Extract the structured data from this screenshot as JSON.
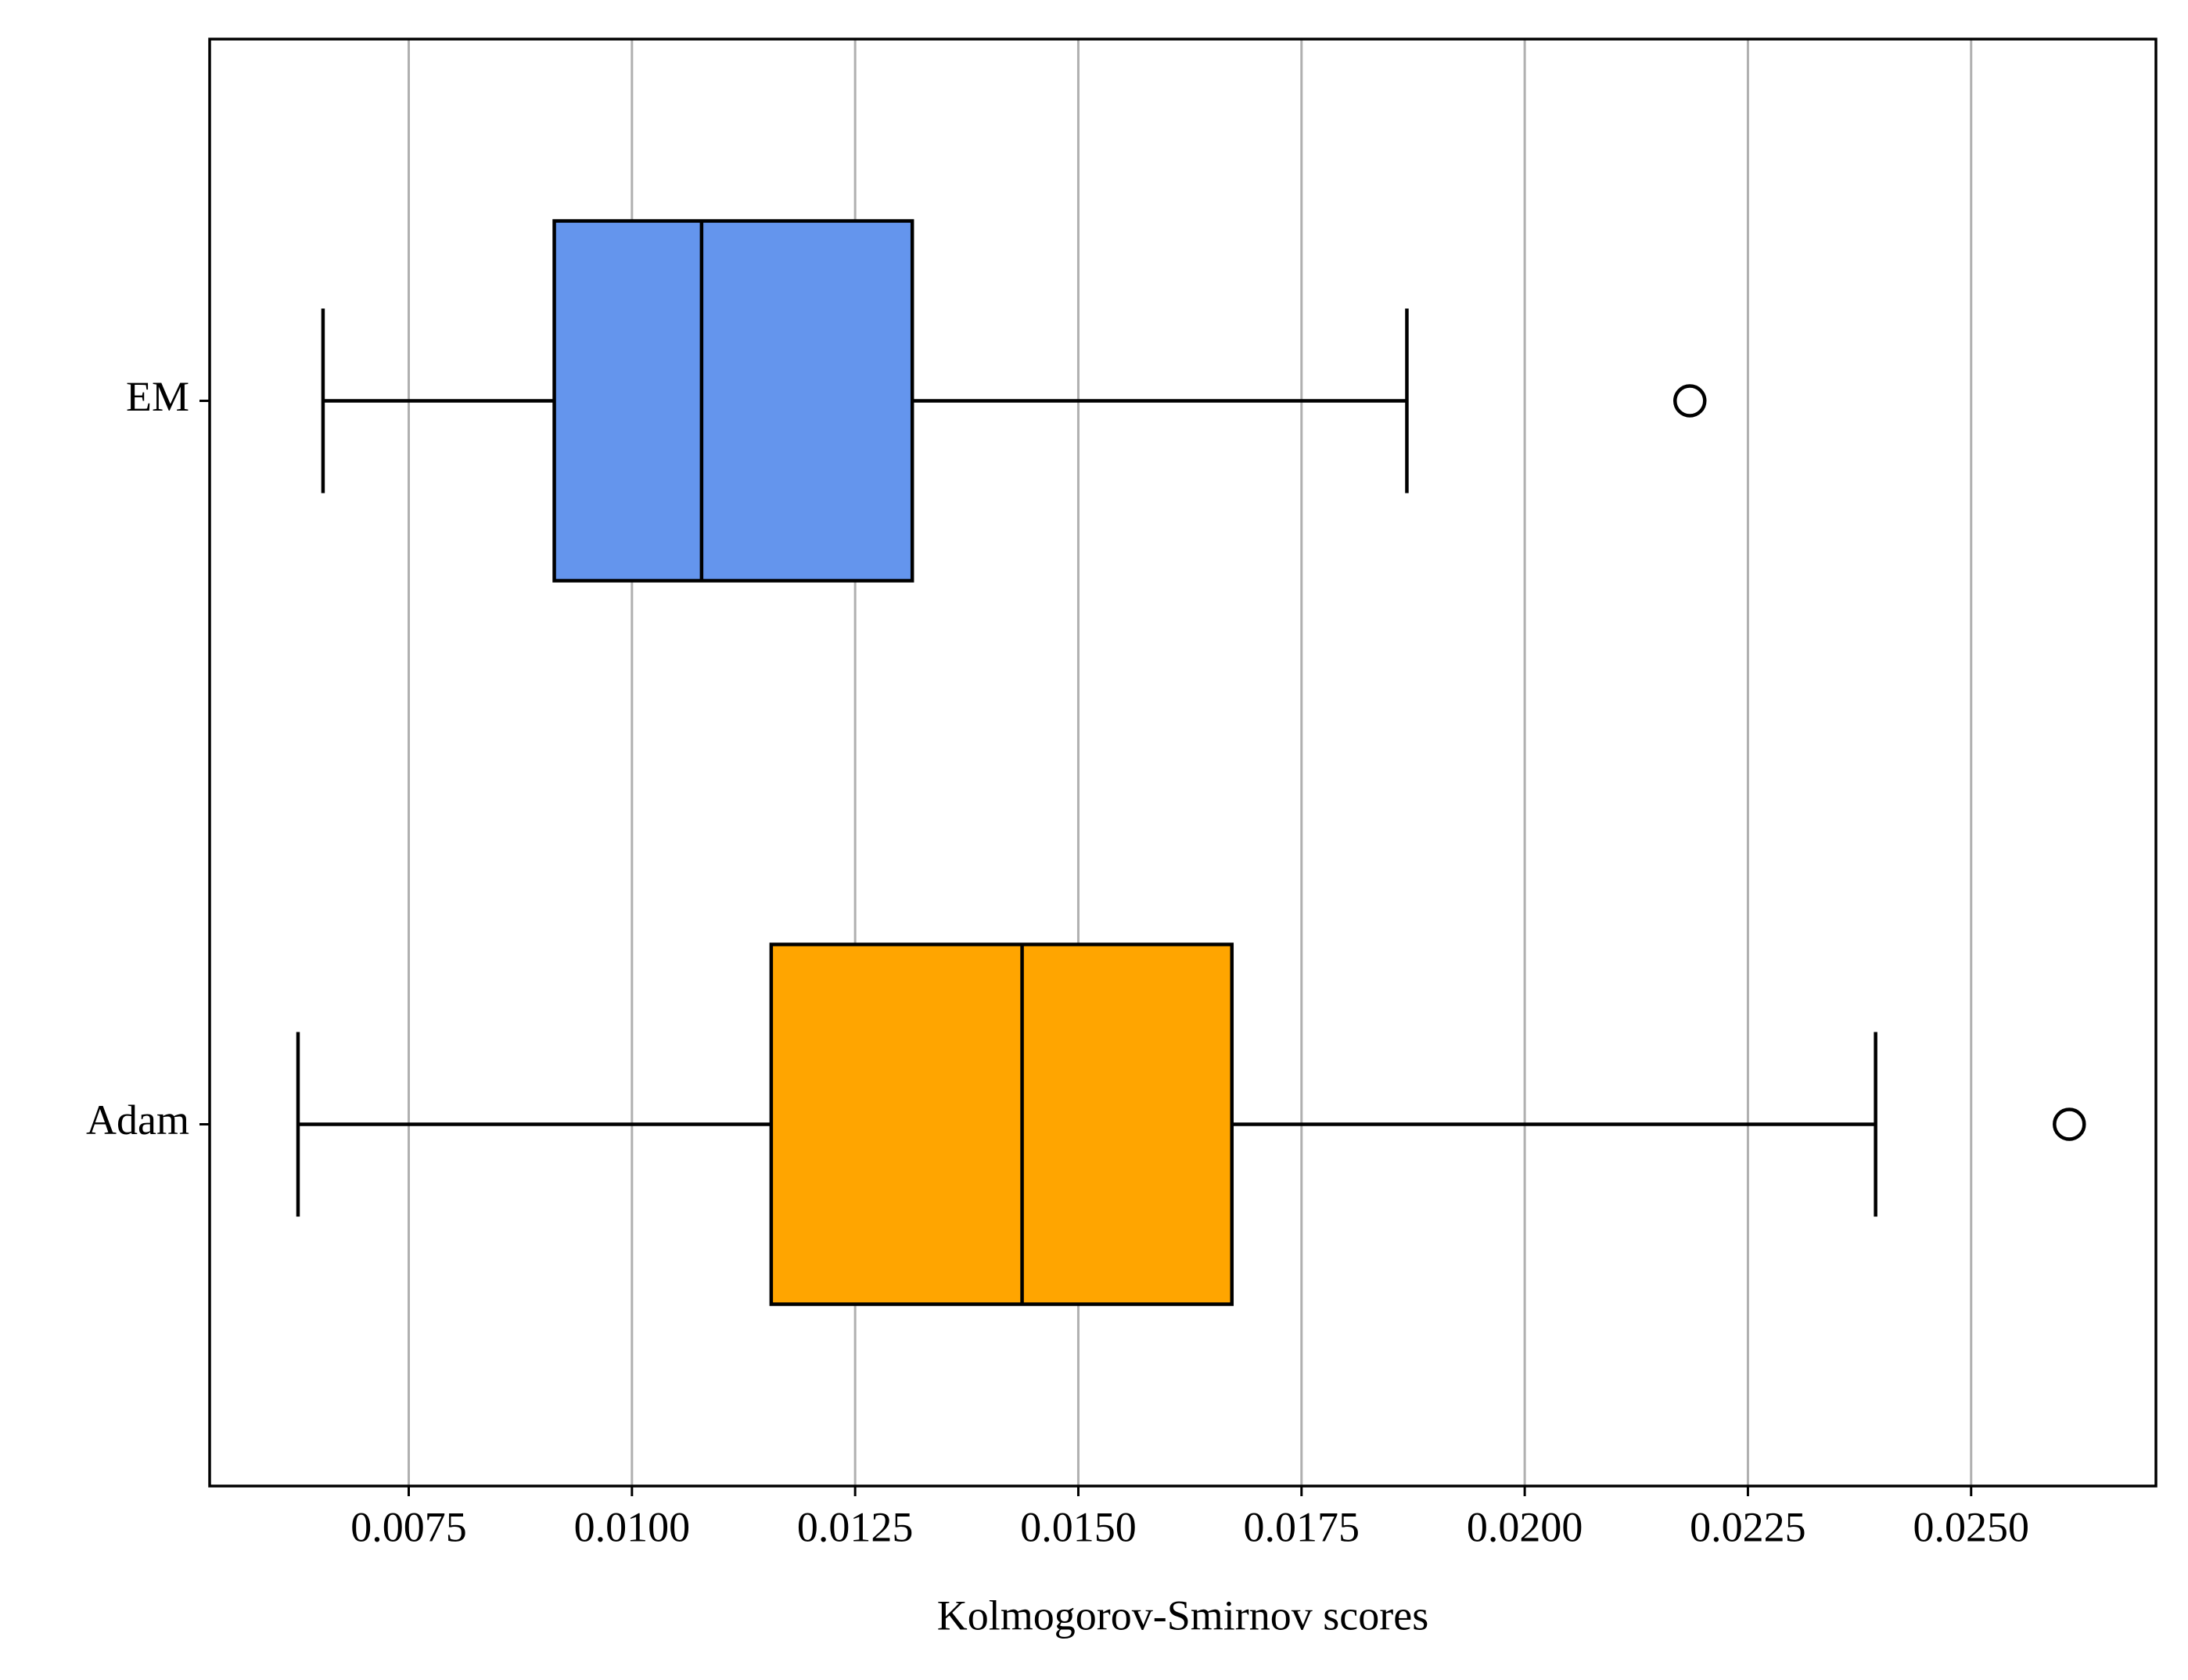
{
  "chart_data": {
    "type": "boxplot",
    "orientation": "horizontal",
    "xlabel": "Kolmogorov-Smirnov scores",
    "categories": [
      "EM",
      "Adam"
    ],
    "colors": [
      "#6495ed",
      "#ffa500"
    ],
    "boxes": [
      {
        "whisker_low": 0.00654,
        "q1": 0.00913,
        "median": 0.01078,
        "q3": 0.01314,
        "whisker_high": 0.01868,
        "outliers": [
          0.02185
        ]
      },
      {
        "whisker_low": 0.00626,
        "q1": 0.01156,
        "median": 0.01437,
        "q3": 0.01672,
        "whisker_high": 0.02393,
        "outliers": [
          0.0261
        ]
      }
    ],
    "xlim": [
      0.00527,
      0.02707
    ],
    "xticks": [
      0.0075,
      {
        "value": 0.01,
        "label": "0.0100"
      },
      0.0125,
      {
        "value": 0.015,
        "label": "0.0150"
      },
      0.0175,
      {
        "value": 0.02,
        "label": "0.0200"
      },
      0.0225,
      {
        "value": 0.025,
        "label": "0.0250"
      }
    ],
    "grid": true
  }
}
